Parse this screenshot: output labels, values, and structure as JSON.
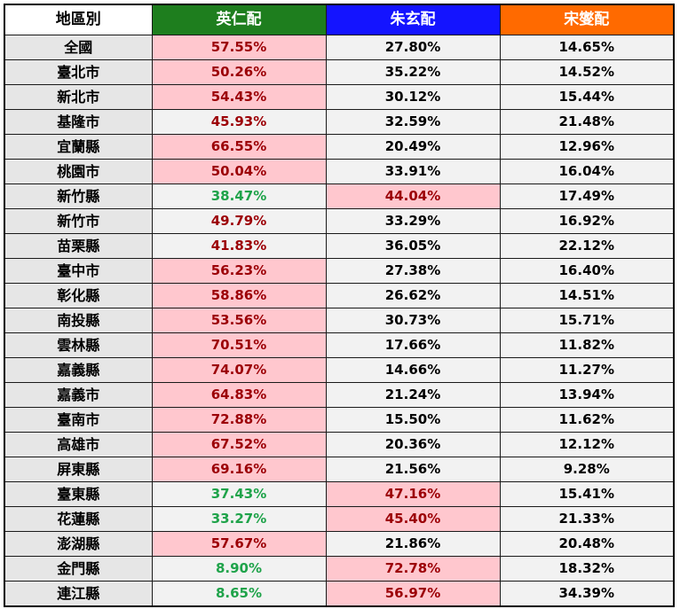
{
  "headers": {
    "region": "地區別",
    "c1": "英仁配",
    "c2": "朱玄配",
    "c3": "宋燮配"
  },
  "colors": {
    "c1_header": "#1e7e1e",
    "c2_header": "#1414ff",
    "c3_header": "#ff6a00",
    "highlight": "#ffc7ce",
    "winner_text": "#9c0006",
    "loser_text": "#1fa34a"
  },
  "rows": [
    {
      "region": "全國",
      "c1": "57.55%",
      "c2": "27.80%",
      "c3": "14.65%",
      "winner": "c1"
    },
    {
      "region": "臺北市",
      "c1": "50.26%",
      "c2": "35.22%",
      "c3": "14.52%",
      "winner": "c1"
    },
    {
      "region": "新北市",
      "c1": "54.43%",
      "c2": "30.12%",
      "c3": "15.44%",
      "winner": "c1"
    },
    {
      "region": "基隆市",
      "c1": "45.93%",
      "c2": "32.59%",
      "c3": "21.48%",
      "winner": "c1",
      "plurality": true
    },
    {
      "region": "宜蘭縣",
      "c1": "66.55%",
      "c2": "20.49%",
      "c3": "12.96%",
      "winner": "c1"
    },
    {
      "region": "桃園市",
      "c1": "50.04%",
      "c2": "33.91%",
      "c3": "16.04%",
      "winner": "c1"
    },
    {
      "region": "新竹縣",
      "c1": "38.47%",
      "c2": "44.04%",
      "c3": "17.49%",
      "winner": "c2"
    },
    {
      "region": "新竹市",
      "c1": "49.79%",
      "c2": "33.29%",
      "c3": "16.92%",
      "winner": "c1",
      "plurality": true
    },
    {
      "region": "苗栗縣",
      "c1": "41.83%",
      "c2": "36.05%",
      "c3": "22.12%",
      "winner": "c1",
      "plurality": true
    },
    {
      "region": "臺中市",
      "c1": "56.23%",
      "c2": "27.38%",
      "c3": "16.40%",
      "winner": "c1"
    },
    {
      "region": "彰化縣",
      "c1": "58.86%",
      "c2": "26.62%",
      "c3": "14.51%",
      "winner": "c1"
    },
    {
      "region": "南投縣",
      "c1": "53.56%",
      "c2": "30.73%",
      "c3": "15.71%",
      "winner": "c1"
    },
    {
      "region": "雲林縣",
      "c1": "70.51%",
      "c2": "17.66%",
      "c3": "11.82%",
      "winner": "c1"
    },
    {
      "region": "嘉義縣",
      "c1": "74.07%",
      "c2": "14.66%",
      "c3": "11.27%",
      "winner": "c1"
    },
    {
      "region": "嘉義市",
      "c1": "64.83%",
      "c2": "21.24%",
      "c3": "13.94%",
      "winner": "c1"
    },
    {
      "region": "臺南市",
      "c1": "72.88%",
      "c2": "15.50%",
      "c3": "11.62%",
      "winner": "c1"
    },
    {
      "region": "高雄市",
      "c1": "67.52%",
      "c2": "20.36%",
      "c3": "12.12%",
      "winner": "c1"
    },
    {
      "region": "屏東縣",
      "c1": "69.16%",
      "c2": "21.56%",
      "c3": "9.28%",
      "winner": "c1"
    },
    {
      "region": "臺東縣",
      "c1": "37.43%",
      "c2": "47.16%",
      "c3": "15.41%",
      "winner": "c2"
    },
    {
      "region": "花蓮縣",
      "c1": "33.27%",
      "c2": "45.40%",
      "c3": "21.33%",
      "winner": "c2"
    },
    {
      "region": "澎湖縣",
      "c1": "57.67%",
      "c2": "21.86%",
      "c3": "20.48%",
      "winner": "c1"
    },
    {
      "region": "金門縣",
      "c1": "8.90%",
      "c2": "72.78%",
      "c3": "18.32%",
      "winner": "c2"
    },
    {
      "region": "連江縣",
      "c1": "8.65%",
      "c2": "56.97%",
      "c3": "34.39%",
      "winner": "c2"
    }
  ]
}
